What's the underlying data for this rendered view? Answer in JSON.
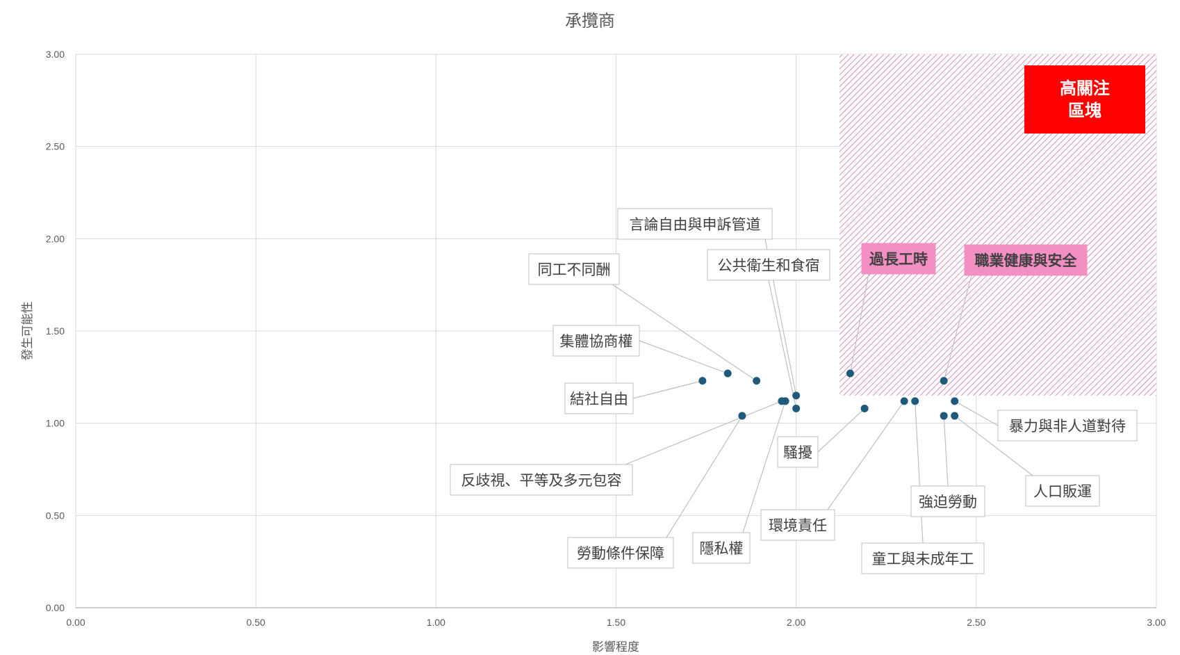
{
  "chart_data": {
    "type": "scatter",
    "title": "承攬商",
    "xlabel": "影響程度",
    "ylabel": "發生可能性",
    "xlim": [
      0,
      3
    ],
    "ylim": [
      0,
      3
    ],
    "xticks": [
      "0.00",
      "0.50",
      "1.00",
      "1.50",
      "2.00",
      "2.50",
      "3.00"
    ],
    "yticks": [
      "0.00",
      "0.50",
      "1.00",
      "1.50",
      "2.00",
      "2.50",
      "3.00"
    ],
    "grid": true,
    "marker_color": "#1f5a7a",
    "high_concern_zone": {
      "label_line1": "高關注",
      "label_line2": "區塊",
      "x_min": 2.12,
      "y_min": 1.15,
      "fill_color": "#d070b0",
      "label_color": "#ff0000"
    },
    "points": [
      {
        "label": "結社自由",
        "x": 1.74,
        "y": 1.23,
        "highlight": false
      },
      {
        "label": "集體協商權",
        "x": 1.81,
        "y": 1.27,
        "highlight": false
      },
      {
        "label": "同工不同酬",
        "x": 1.89,
        "y": 1.23,
        "highlight": false
      },
      {
        "label": "言論自由與申訴管道",
        "x": 2.0,
        "y": 1.15,
        "highlight": false
      },
      {
        "label": "公共衛生和食宿",
        "x": 2.0,
        "y": 1.08,
        "highlight": false
      },
      {
        "label": "反歧視、平等及多元包容",
        "x": 1.96,
        "y": 1.12,
        "highlight": false
      },
      {
        "label": "勞動條件保障",
        "x": 1.85,
        "y": 1.04,
        "highlight": false
      },
      {
        "label": "隱私權",
        "x": 1.97,
        "y": 1.12,
        "highlight": false
      },
      {
        "label": "騷擾",
        "x": 2.19,
        "y": 1.08,
        "highlight": false
      },
      {
        "label": "環境責任",
        "x": 2.3,
        "y": 1.12,
        "highlight": false
      },
      {
        "label": "童工與未成年工",
        "x": 2.33,
        "y": 1.12,
        "highlight": false
      },
      {
        "label": "強迫勞動",
        "x": 2.41,
        "y": 1.04,
        "highlight": false
      },
      {
        "label": "人口販運",
        "x": 2.44,
        "y": 1.04,
        "highlight": false
      },
      {
        "label": "暴力與非人道對待",
        "x": 2.44,
        "y": 1.12,
        "highlight": false
      },
      {
        "label": "過長工時",
        "x": 2.15,
        "y": 1.27,
        "highlight": true
      },
      {
        "label": "職業健康與安全",
        "x": 2.41,
        "y": 1.23,
        "highlight": true
      }
    ]
  }
}
